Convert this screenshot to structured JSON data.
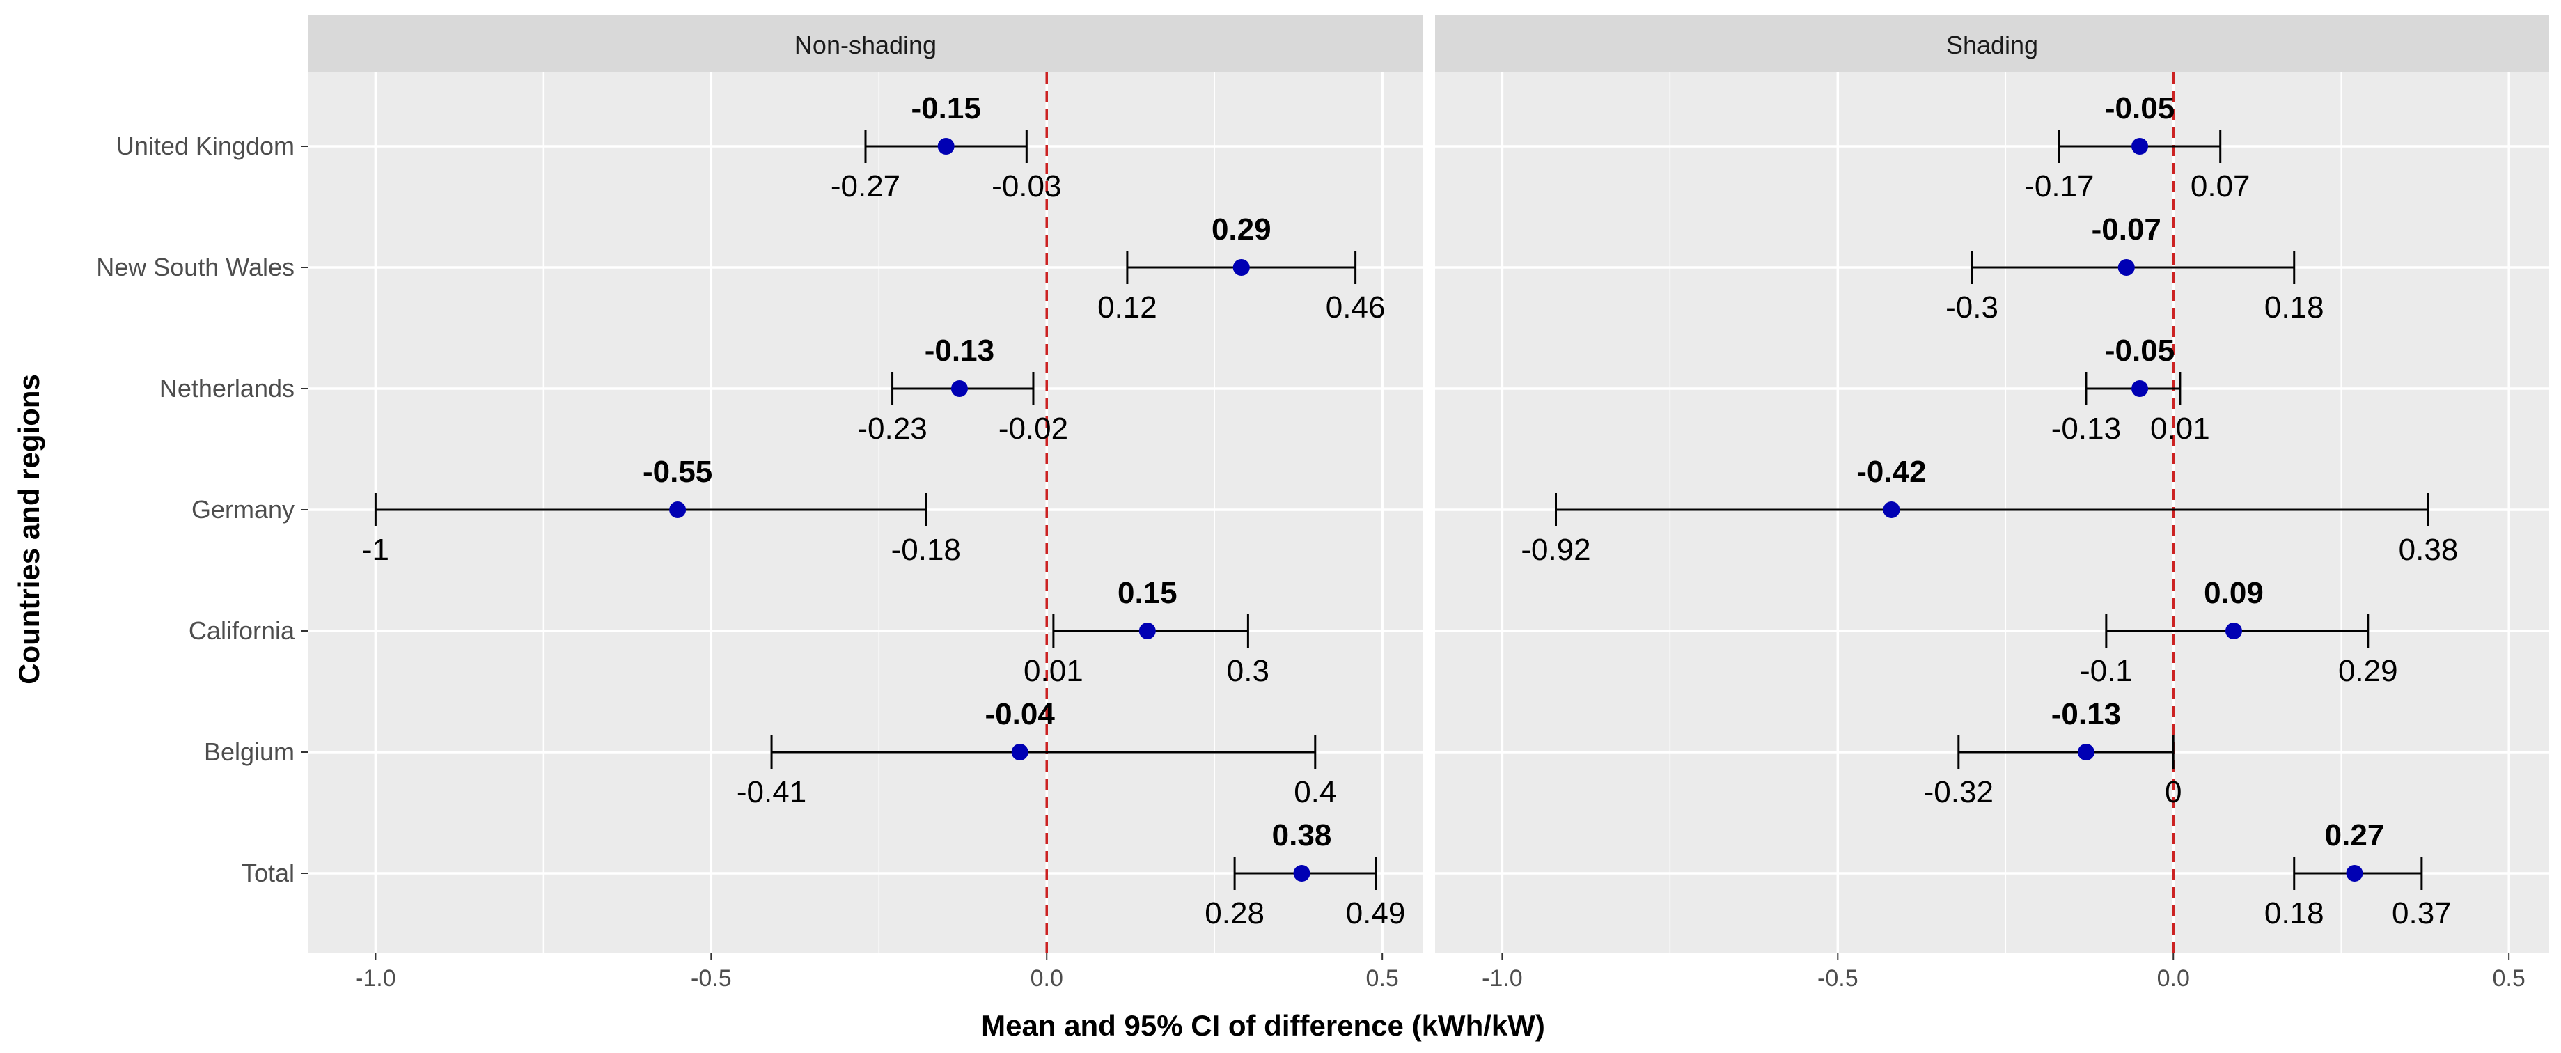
{
  "chart_data": {
    "type": "forest",
    "xlabel": "Mean and 95% CI  of difference (kWh/kW)",
    "ylabel": "Countries and regions",
    "categories": [
      "United Kingdom",
      "New South Wales",
      "Netherlands",
      "Germany",
      "California",
      "Belgium",
      "Total"
    ],
    "xlim": [
      -1.1,
      0.56
    ],
    "xticks": [
      -1.0,
      -0.5,
      0.0,
      0.5
    ],
    "xtick_labels": [
      "-1.0",
      "-0.5",
      "0.0",
      "0.5"
    ],
    "reference_line": {
      "x": 0,
      "style": "dashed",
      "color": "#cc2222"
    },
    "point_color": "#0000b3",
    "panels": [
      {
        "name": "Non-shading",
        "rows": [
          {
            "category": "United Kingdom",
            "mean": -0.15,
            "lower": -0.27,
            "upper": -0.03,
            "mean_label": "-0.15",
            "lower_label": "-0.27",
            "upper_label": "-0.03"
          },
          {
            "category": "New South Wales",
            "mean": 0.29,
            "lower": 0.12,
            "upper": 0.46,
            "mean_label": "0.29",
            "lower_label": "0.12",
            "upper_label": "0.46"
          },
          {
            "category": "Netherlands",
            "mean": -0.13,
            "lower": -0.23,
            "upper": -0.02,
            "mean_label": "-0.13",
            "lower_label": "-0.23",
            "upper_label": "-0.02"
          },
          {
            "category": "Germany",
            "mean": -0.55,
            "lower": -1.0,
            "upper": -0.18,
            "mean_label": "-0.55",
            "lower_label": "-1",
            "upper_label": "-0.18"
          },
          {
            "category": "California",
            "mean": 0.15,
            "lower": 0.01,
            "upper": 0.3,
            "mean_label": "0.15",
            "lower_label": "0.01",
            "upper_label": "0.3"
          },
          {
            "category": "Belgium",
            "mean": -0.04,
            "lower": -0.41,
            "upper": 0.4,
            "mean_label": "-0.04",
            "lower_label": "-0.41",
            "upper_label": "0.4"
          },
          {
            "category": "Total",
            "mean": 0.38,
            "lower": 0.28,
            "upper": 0.49,
            "mean_label": "0.38",
            "lower_label": "0.28",
            "upper_label": "0.49"
          }
        ]
      },
      {
        "name": "Shading",
        "rows": [
          {
            "category": "United Kingdom",
            "mean": -0.05,
            "lower": -0.17,
            "upper": 0.07,
            "mean_label": "-0.05",
            "lower_label": "-0.17",
            "upper_label": "0.07"
          },
          {
            "category": "New South Wales",
            "mean": -0.07,
            "lower": -0.3,
            "upper": 0.18,
            "mean_label": "-0.07",
            "lower_label": "-0.3",
            "upper_label": "0.18"
          },
          {
            "category": "Netherlands",
            "mean": -0.05,
            "lower": -0.13,
            "upper": 0.01,
            "mean_label": "-0.05",
            "lower_label": "-0.13",
            "upper_label": "0.01"
          },
          {
            "category": "Germany",
            "mean": -0.42,
            "lower": -0.92,
            "upper": 0.38,
            "mean_label": "-0.42",
            "lower_label": "-0.92",
            "upper_label": "0.38"
          },
          {
            "category": "California",
            "mean": 0.09,
            "lower": -0.1,
            "upper": 0.29,
            "mean_label": "0.09",
            "lower_label": "-0.1",
            "upper_label": "0.29"
          },
          {
            "category": "Belgium",
            "mean": -0.13,
            "lower": -0.32,
            "upper": 0.0,
            "mean_label": "-0.13",
            "lower_label": "-0.32",
            "upper_label": "0"
          },
          {
            "category": "Total",
            "mean": 0.27,
            "lower": 0.18,
            "upper": 0.37,
            "mean_label": "0.27",
            "lower_label": "0.18",
            "upper_label": "0.37"
          }
        ]
      }
    ]
  }
}
